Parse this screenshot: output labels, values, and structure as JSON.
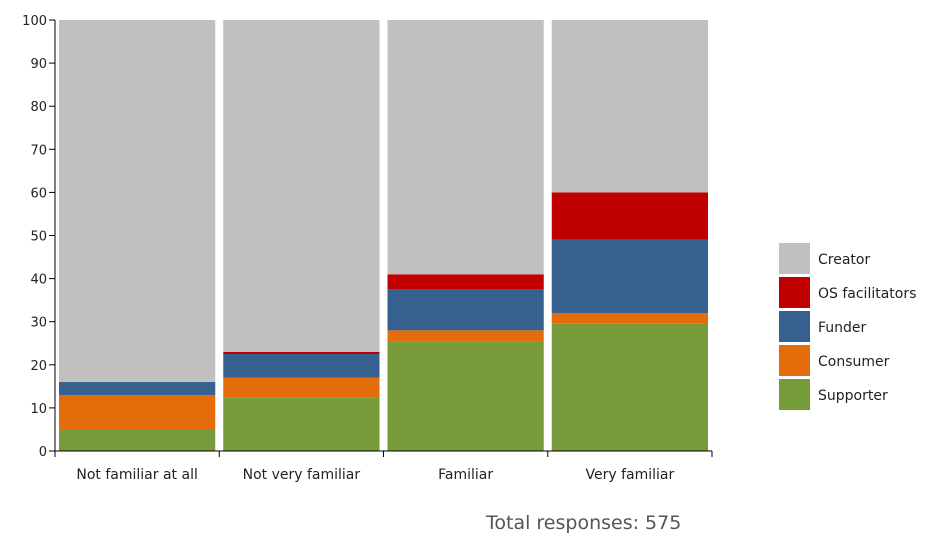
{
  "chart_data": {
    "type": "bar",
    "stacked": true,
    "categories": [
      "Not familiar at all",
      "Not very familiar",
      "Familiar",
      "Very familiar"
    ],
    "ylim": [
      0,
      100
    ],
    "yticks": [
      0,
      10,
      20,
      30,
      40,
      50,
      60,
      70,
      80,
      90,
      100
    ],
    "series": [
      {
        "name": "Supporter",
        "color": "#779a3b",
        "values": [
          5,
          12.5,
          25.5,
          29.5
        ]
      },
      {
        "name": "Consumer",
        "color": "#e46c0a",
        "values": [
          8,
          4.5,
          2.5,
          2.5
        ]
      },
      {
        "name": "Funder",
        "color": "#35608f",
        "values": [
          3,
          5.5,
          9.5,
          17
        ]
      },
      {
        "name": "OS facilitators",
        "color": "#c00000",
        "values": [
          0,
          0.5,
          3.5,
          11
        ]
      },
      {
        "name": "Creator",
        "color": "#c0c0c0",
        "values": [
          84,
          77,
          59,
          40
        ]
      }
    ],
    "legend_position": "right",
    "grid": false
  },
  "footer": "Total responses: 575"
}
